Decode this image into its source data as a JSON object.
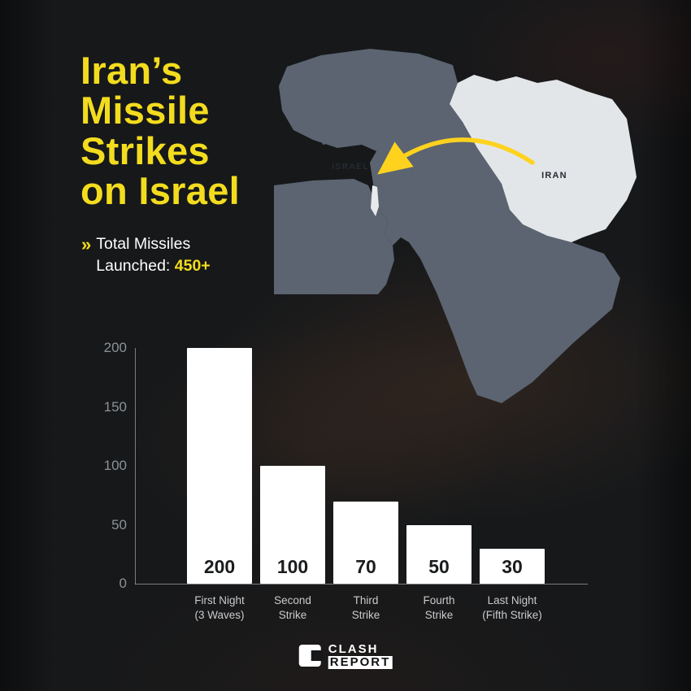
{
  "header": {
    "title_lines": [
      "Iran’s",
      "Missile",
      "Strikes",
      "on Israel"
    ],
    "subtitle_marker": "»",
    "subtitle_line1": "Total Missiles",
    "subtitle_line2_label": "Launched: ",
    "subtitle_total": "450+"
  },
  "map": {
    "israel_label": "ISRAEL",
    "iran_label": "IRAN",
    "arrow_color": "#FFD21E",
    "land_color": "#5b6470",
    "iran_color": "#e3e6e9"
  },
  "chart_data": {
    "type": "bar",
    "title": "Iran’s Missile Strikes on Israel",
    "total_missiles_launched": "450+",
    "categories": [
      "First Night (3 Waves)",
      "Second Strike",
      "Third Strike",
      "Fourth Strike",
      "Last Night (Fifth Strike)"
    ],
    "category_lines": [
      [
        "First Night",
        "(3 Waves)"
      ],
      [
        "Second",
        "Strike"
      ],
      [
        "Third",
        "Strike"
      ],
      [
        "Fourth",
        "Strike"
      ],
      [
        "Last Night",
        "(Fifth Strike)"
      ]
    ],
    "values": [
      200,
      100,
      70,
      50,
      30
    ],
    "yticks": [
      0,
      50,
      100,
      150,
      200
    ],
    "ylim": [
      0,
      200
    ],
    "xlabel": "",
    "ylabel": "",
    "grid": false,
    "legend": false,
    "bar_color": "#ffffff",
    "value_label_color": "#1a1c1e"
  },
  "footer": {
    "brand_line1": "CLASH",
    "brand_line2": "REPORT"
  },
  "colors": {
    "accent_yellow": "#F3DC1E",
    "background": "#16181a",
    "axis_text": "#8d9296",
    "category_text": "#c8cbce"
  }
}
